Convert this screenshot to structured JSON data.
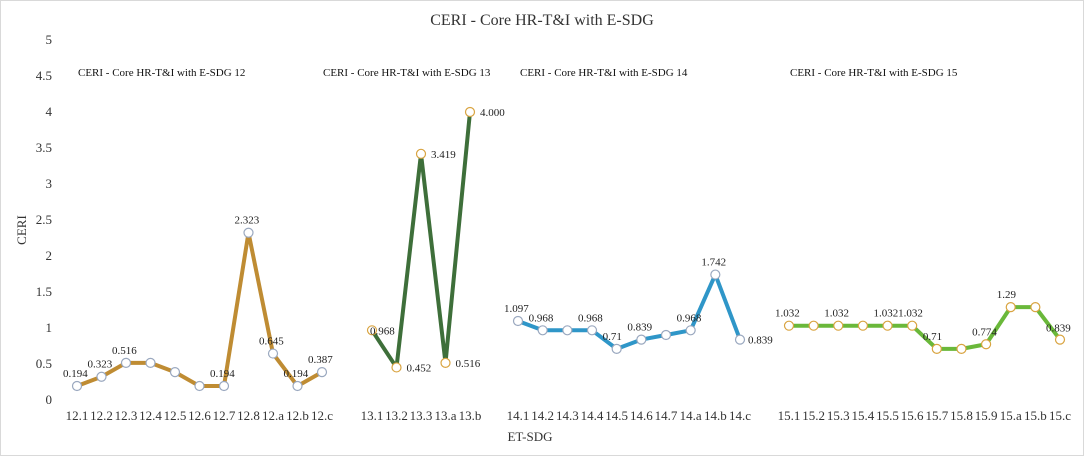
{
  "chart_data": {
    "type": "line",
    "title": "CERI - Core HR-T&I with E-SDG",
    "xlabel": "ET-SDG",
    "ylabel": "CERI",
    "ylim": [
      0,
      5
    ],
    "yticks": [
      "0",
      "0.5",
      "1",
      "1.5",
      "2",
      "2.5",
      "3",
      "3.5",
      "4",
      "4.5",
      "5"
    ],
    "grid": false,
    "legend": "none",
    "series": [
      {
        "name": "CERI - Core HR-T&I with E-SDG 12",
        "color": "#bf8c33",
        "marker_stroke": "#9aa8bf",
        "x": [
          "12.1",
          "12.2",
          "12.3",
          "12.4",
          "12.5",
          "12.6",
          "12.7",
          "12.8",
          "12.a",
          "12.b",
          "12.c"
        ],
        "values": [
          0.194,
          0.323,
          0.516,
          0.516,
          0.387,
          0.194,
          0.194,
          2.323,
          0.645,
          0.194,
          0.387
        ],
        "labels": [
          "0.194",
          "0.323",
          "0.516",
          "",
          "",
          "",
          "0.194",
          "2.323",
          "0.645",
          "0.194",
          "0.387"
        ]
      },
      {
        "name": "CERI - Core HR-T&I with E-SDG 13",
        "color": "#3e6f3a",
        "marker_stroke": "#d9a441",
        "x": [
          "13.1",
          "13.2",
          "13.3",
          "13.a",
          "13.b"
        ],
        "values": [
          0.968,
          0.452,
          3.419,
          0.516,
          4.0
        ],
        "labels": [
          "0.968",
          "0.452",
          "3.419",
          "0.516",
          "4.000"
        ]
      },
      {
        "name": "CERI - Core HR-T&I with E-SDG 14",
        "color": "#2f96c8",
        "marker_stroke": "#9aa8bf",
        "x": [
          "14.1",
          "14.2",
          "14.3",
          "14.4",
          "14.5",
          "14.6",
          "14.7",
          "14.a",
          "14.b",
          "14.c"
        ],
        "values": [
          1.097,
          0.968,
          0.968,
          0.968,
          0.71,
          0.839,
          0.903,
          0.968,
          1.742,
          0.839
        ],
        "labels": [
          "1.097",
          "0.968",
          "",
          "0.968",
          "0.71",
          "0.839",
          "",
          "0.968",
          "1.742",
          "0.839"
        ]
      },
      {
        "name": "CERI - Core HR-T&I with E-SDG 15",
        "color": "#6ab83a",
        "marker_stroke": "#d9a441",
        "x": [
          "15.1",
          "15.2",
          "15.3",
          "15.4",
          "15.5",
          "15.6",
          "15.7",
          "15.8",
          "15.9",
          "15.a",
          "15.b",
          "15.c"
        ],
        "values": [
          1.032,
          1.032,
          1.032,
          1.032,
          1.032,
          1.032,
          0.71,
          0.71,
          0.774,
          1.29,
          1.29,
          0.839
        ],
        "labels": [
          "1.032",
          "",
          "1.032",
          "",
          "1.032",
          "1.032",
          "0.71",
          "",
          "0.774",
          "1.29",
          "",
          "0.839"
        ]
      }
    ]
  }
}
